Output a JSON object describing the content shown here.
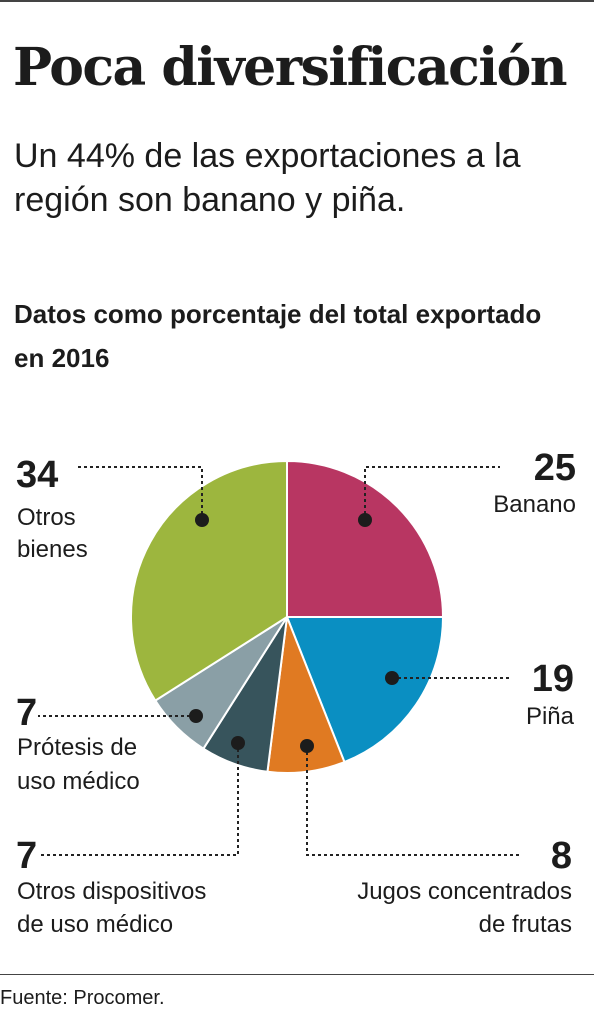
{
  "title": "Poca diversificación",
  "subtitle": "Un 44% de las exportaciones a la región son banano y piña.",
  "chart_heading": "Datos como porcentaje del total exportado en 2016",
  "source": "Fuente: Procomer.",
  "chart_data": {
    "type": "pie",
    "title": "Datos como porcentaje del total exportado en 2016",
    "slices": [
      {
        "label": "Banano",
        "value": 25,
        "color": "#b83662"
      },
      {
        "label": "Piña",
        "value": 19,
        "color": "#0a8fc2"
      },
      {
        "label": "Jugos concentrados de frutas",
        "value": 8,
        "color": "#e07a22"
      },
      {
        "label": "Otros dispositivos de uso médico",
        "value": 7,
        "color": "#37545c"
      },
      {
        "label": "Prótesis de uso médico",
        "value": 7,
        "color": "#8a9fa6"
      },
      {
        "label": "Otros bienes",
        "value": 34,
        "color": "#9db63e"
      }
    ],
    "start_angle_deg": 0,
    "direction": "clockwise"
  },
  "labels": {
    "banano": {
      "value": "25",
      "name": "Banano"
    },
    "pina": {
      "value": "19",
      "name": "Piña"
    },
    "jugos": {
      "value": "8",
      "name_line1": "Jugos concentrados",
      "name_line2": "de frutas"
    },
    "dispositivos": {
      "value": "7",
      "name_line1": "Otros dispositivos",
      "name_line2": "de uso médico"
    },
    "protesis": {
      "value": "7",
      "name_line1": "Prótesis de",
      "name_line2": "uso médico"
    },
    "otros": {
      "value": "34",
      "name_line1": "Otros",
      "name_line2": "bienes"
    }
  }
}
